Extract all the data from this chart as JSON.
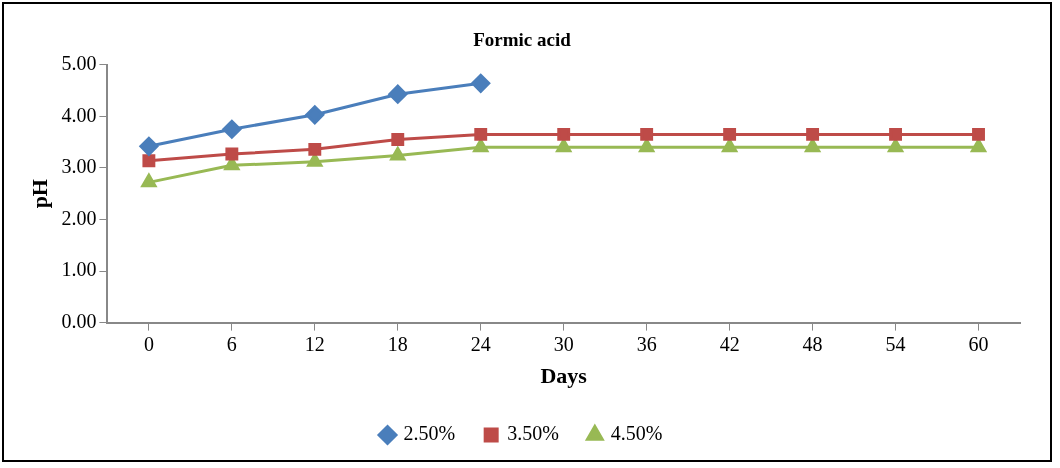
{
  "chart_data": {
    "type": "line",
    "title": "Formic acid",
    "xlabel": "Days",
    "ylabel": "pH",
    "categories": [
      "0",
      "6",
      "12",
      "18",
      "24",
      "30",
      "36",
      "42",
      "48",
      "54",
      "60"
    ],
    "series": [
      {
        "name": "2.50%",
        "color": "#4a7ebb",
        "marker": "diamond",
        "values": [
          3.42,
          3.75,
          4.03,
          4.43,
          4.64,
          null,
          null,
          null,
          null,
          null,
          null
        ]
      },
      {
        "name": "3.50%",
        "color": "#be4b48",
        "marker": "square",
        "values": [
          3.14,
          3.27,
          3.36,
          3.55,
          3.65,
          3.65,
          3.65,
          3.65,
          3.65,
          3.65,
          3.65
        ]
      },
      {
        "name": "4.50%",
        "color": "#98b954",
        "marker": "triangle",
        "values": [
          2.72,
          3.05,
          3.12,
          3.24,
          3.4,
          3.4,
          3.4,
          3.4,
          3.4,
          3.4,
          3.4
        ]
      }
    ],
    "ylim": [
      0,
      5
    ],
    "yticks": [
      {
        "value": 0,
        "label": "0.00"
      },
      {
        "value": 1,
        "label": "1.00"
      },
      {
        "value": 2,
        "label": "2.00"
      },
      {
        "value": 3,
        "label": "3.00"
      },
      {
        "value": 4,
        "label": "4.00"
      },
      {
        "value": 5,
        "label": "5.00"
      }
    ],
    "grid": false,
    "legend": "bottom"
  }
}
